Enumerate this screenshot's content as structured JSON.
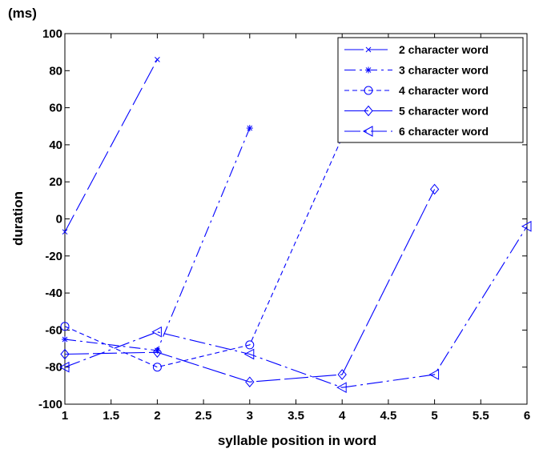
{
  "chart_data": {
    "type": "line",
    "unit_label": "(ms)",
    "xlabel": "syllable position in word",
    "ylabel": "duration",
    "xlim": [
      1,
      6
    ],
    "ylim": [
      -100,
      100
    ],
    "xticks": [
      1,
      1.5,
      2,
      2.5,
      3,
      3.5,
      4,
      4.5,
      5,
      5.5,
      6
    ],
    "yticks": [
      -100,
      -80,
      -60,
      -40,
      -20,
      0,
      20,
      40,
      60,
      80,
      100
    ],
    "grid": false,
    "legend_position": "top-right",
    "line_color": "#0000ff",
    "series": [
      {
        "name": "2 character word",
        "marker": "x",
        "dash": "longdash",
        "x": [
          1,
          2
        ],
        "y": [
          -7,
          86
        ]
      },
      {
        "name": "3 character word",
        "marker": "asterisk",
        "dash": "dashdot",
        "x": [
          1,
          2,
          3
        ],
        "y": [
          -65,
          -71,
          49
        ]
      },
      {
        "name": "4 character word",
        "marker": "circle",
        "dash": "dashed",
        "x": [
          1,
          2,
          3,
          4
        ],
        "y": [
          -58,
          -80,
          -68,
          44
        ]
      },
      {
        "name": "5 character word",
        "marker": "diamond",
        "dash": "solid-longdash",
        "x": [
          1,
          2,
          3,
          4,
          5
        ],
        "y": [
          -73,
          -72,
          -88,
          -84,
          16
        ]
      },
      {
        "name": "6 character word",
        "marker": "triangle-left",
        "dash": "longdash-dot",
        "x": [
          1,
          2,
          3,
          4,
          5,
          6
        ],
        "y": [
          -80,
          -61,
          -73,
          -91,
          -84,
          -4
        ]
      }
    ]
  }
}
